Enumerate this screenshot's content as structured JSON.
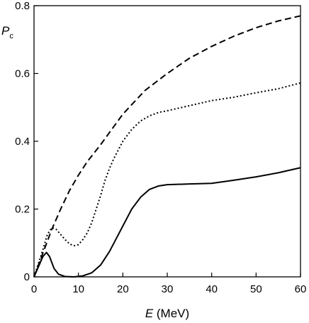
{
  "chart_data": {
    "type": "line",
    "xlabel": {
      "var": "E",
      "rest": " (MeV)"
    },
    "ylabel": {
      "var": "P",
      "sub": "c"
    },
    "xlim": [
      0,
      60
    ],
    "ylim": [
      0,
      0.8
    ],
    "xticks": [
      0,
      10,
      20,
      30,
      40,
      50,
      60
    ],
    "yticks": [
      0,
      0.2,
      0.4,
      0.6,
      0.8
    ],
    "xtick_labels": [
      "0",
      "10",
      "20",
      "30",
      "40",
      "50",
      "60"
    ],
    "ytick_labels": [
      "0",
      "0.2",
      "0.4",
      "0.6",
      "0.8"
    ],
    "grid": false,
    "series": [
      {
        "style": "dashed",
        "x": [
          0,
          2,
          4,
          6,
          8,
          10,
          12,
          15,
          20,
          25,
          30,
          35,
          40,
          45,
          50,
          55,
          60
        ],
        "y": [
          0,
          0.07,
          0.14,
          0.2,
          0.255,
          0.3,
          0.34,
          0.39,
          0.48,
          0.55,
          0.6,
          0.645,
          0.68,
          0.71,
          0.735,
          0.755,
          0.77
        ]
      },
      {
        "style": "dotted",
        "x": [
          0,
          1,
          2,
          3,
          4,
          5,
          6,
          7,
          8,
          9,
          10,
          11,
          12,
          13,
          14,
          15,
          16,
          17,
          18,
          19,
          20,
          22,
          24,
          26,
          28,
          30,
          35,
          40,
          45,
          50,
          55,
          60
        ],
        "y": [
          0,
          0.04,
          0.08,
          0.125,
          0.145,
          0.14,
          0.125,
          0.11,
          0.097,
          0.092,
          0.095,
          0.11,
          0.13,
          0.16,
          0.2,
          0.24,
          0.285,
          0.32,
          0.35,
          0.375,
          0.4,
          0.435,
          0.46,
          0.475,
          0.485,
          0.49,
          0.505,
          0.52,
          0.53,
          0.543,
          0.555,
          0.572
        ]
      },
      {
        "style": "solid",
        "x": [
          0,
          1,
          2,
          2.8,
          3.5,
          4.5,
          5.5,
          7,
          9,
          11,
          13,
          15,
          17,
          19,
          20,
          21,
          22,
          24,
          26,
          28,
          30,
          35,
          40,
          45,
          50,
          55,
          60
        ],
        "y": [
          0,
          0.03,
          0.06,
          0.072,
          0.06,
          0.025,
          0.008,
          0.001,
          0,
          0.003,
          0.012,
          0.035,
          0.075,
          0.125,
          0.15,
          0.175,
          0.2,
          0.235,
          0.258,
          0.268,
          0.272,
          0.274,
          0.276,
          0.285,
          0.295,
          0.307,
          0.322
        ]
      }
    ]
  }
}
